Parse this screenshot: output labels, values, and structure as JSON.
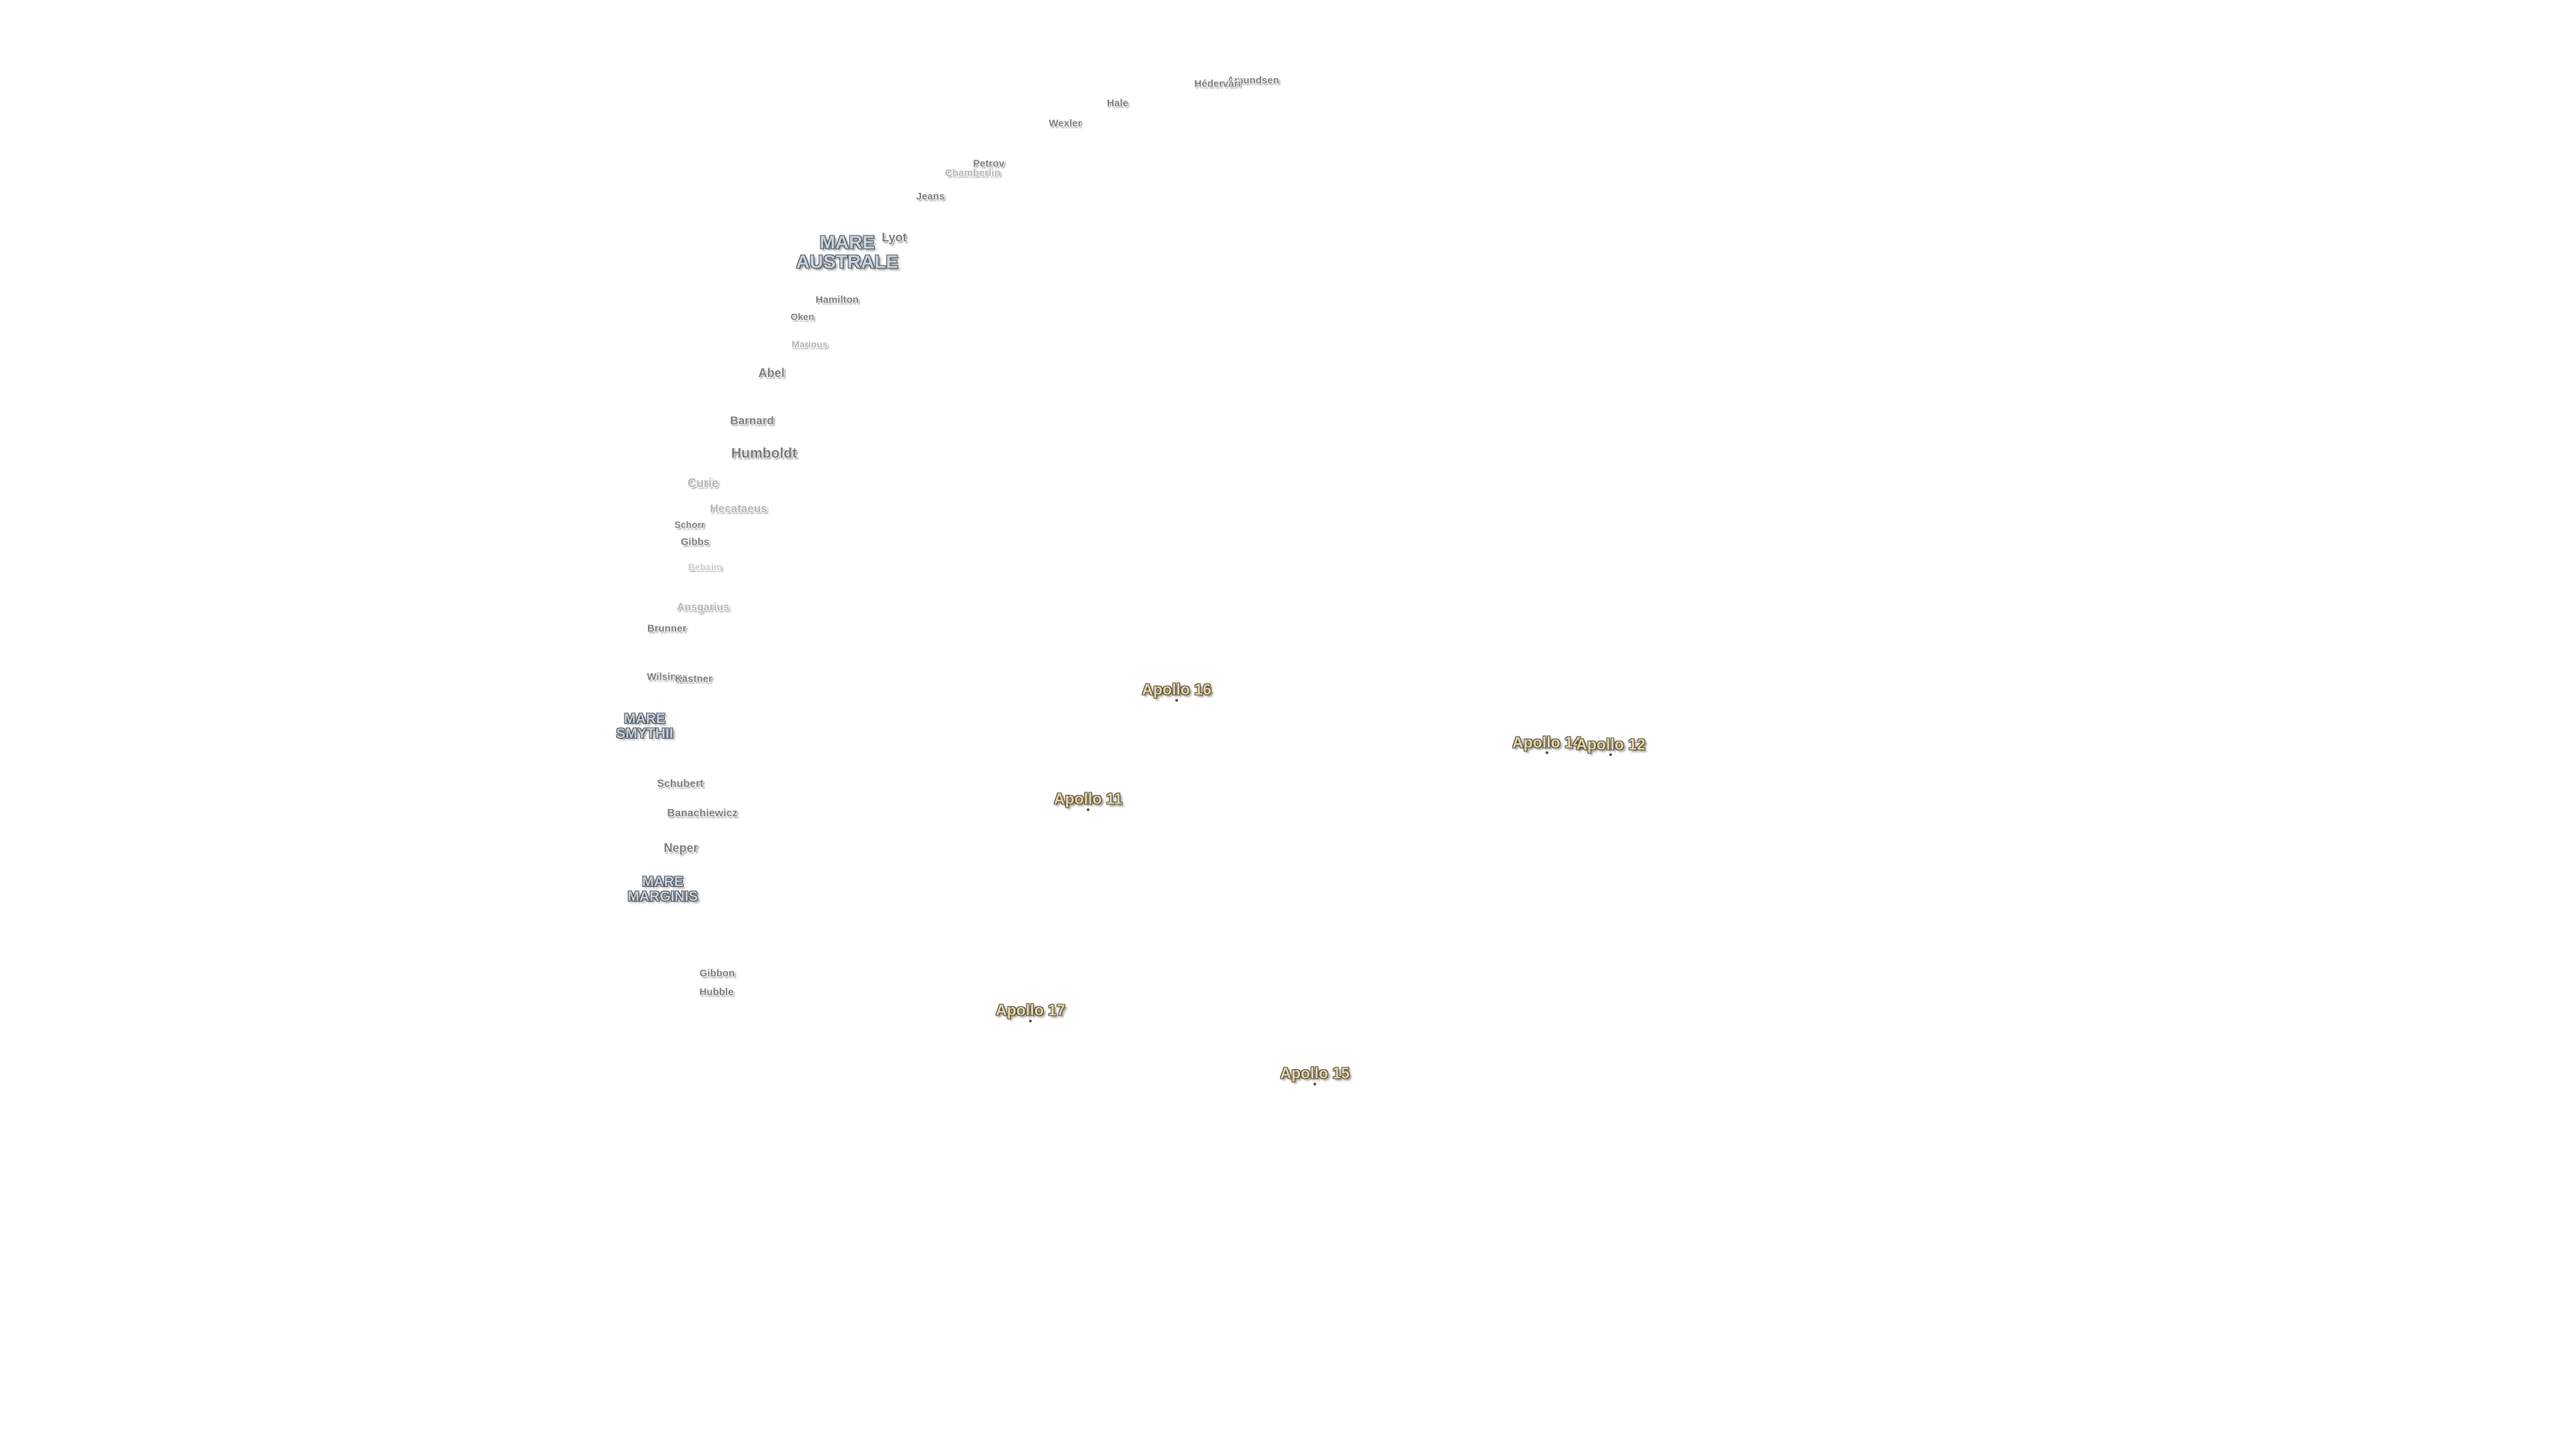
{
  "craters": [
    {
      "name": "Amundsen",
      "kind": "crater"
    },
    {
      "name": "Hédervári",
      "kind": "crater"
    },
    {
      "name": "Hale",
      "kind": "crater"
    },
    {
      "name": "Wexler",
      "kind": "crater"
    },
    {
      "name": "Petrov",
      "kind": "crater"
    },
    {
      "name": "Chamberlin",
      "kind": "crater-faint"
    },
    {
      "name": "Jeans",
      "kind": "crater"
    },
    {
      "name": "Lyot",
      "kind": "crater"
    },
    {
      "name": "Hamilton",
      "kind": "crater"
    },
    {
      "name": "Oken",
      "kind": "crater"
    },
    {
      "name": "Marinus",
      "kind": "crater-faint"
    },
    {
      "name": "Abel",
      "kind": "crater"
    },
    {
      "name": "Barnard",
      "kind": "crater"
    },
    {
      "name": "Humboldt",
      "kind": "crater"
    },
    {
      "name": "Curie",
      "kind": "crater"
    },
    {
      "name": "Hecataeus",
      "kind": "crater-faint"
    },
    {
      "name": "Schorr",
      "kind": "crater"
    },
    {
      "name": "Gibbs",
      "kind": "crater"
    },
    {
      "name": "Behaim",
      "kind": "crater-fainter"
    },
    {
      "name": "Ansgarius",
      "kind": "crater-faint"
    },
    {
      "name": "Brunner",
      "kind": "crater"
    },
    {
      "name": "Wilsing",
      "kind": "crater"
    },
    {
      "name": "Kästner",
      "kind": "crater"
    },
    {
      "name": "Schubert",
      "kind": "crater"
    },
    {
      "name": "Banachiewicz",
      "kind": "crater"
    },
    {
      "name": "Neper",
      "kind": "crater"
    },
    {
      "name": "Gibbon",
      "kind": "crater"
    },
    {
      "name": "Hubble",
      "kind": "crater"
    }
  ],
  "maria": [
    {
      "line1": "MARE",
      "line2": "AUSTRALE"
    },
    {
      "line1": "MARE",
      "line2": "SMYTHII"
    },
    {
      "line1": "MARE",
      "line2": "MARGINIS"
    }
  ],
  "landing_sites": [
    {
      "name": "Apollo 16"
    },
    {
      "name": "Apollo 14"
    },
    {
      "name": "Apollo 12"
    },
    {
      "name": "Apollo 11"
    },
    {
      "name": "Apollo 17"
    },
    {
      "name": "Apollo 15"
    }
  ],
  "colors": {
    "background": "#ffffff",
    "crater_text": "#7a7a7a",
    "mare_text": "#c9d4de",
    "apollo_text": "#e6d9b0"
  }
}
